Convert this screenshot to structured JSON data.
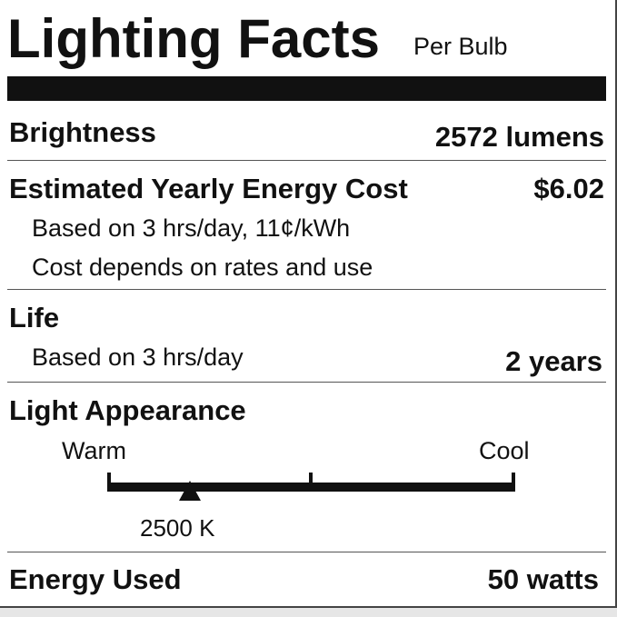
{
  "title": "Lighting Facts",
  "subtitle": "Per Bulb",
  "brightness": {
    "label": "Brightness",
    "value": "2572 lumens"
  },
  "cost": {
    "label": "Estimated Yearly Energy Cost",
    "value": "$6.02",
    "note1": "Based on 3 hrs/day, 11¢/kWh",
    "note2": "Cost depends on rates and use"
  },
  "life": {
    "label": "Life",
    "note": "Based on 3 hrs/day",
    "value": "2 years"
  },
  "appearance": {
    "label": "Light Appearance",
    "warm": "Warm",
    "cool": "Cool",
    "value": "2500 K",
    "marker_fraction": 0.2
  },
  "energy": {
    "label": "Energy Used",
    "value": "50 watts"
  }
}
